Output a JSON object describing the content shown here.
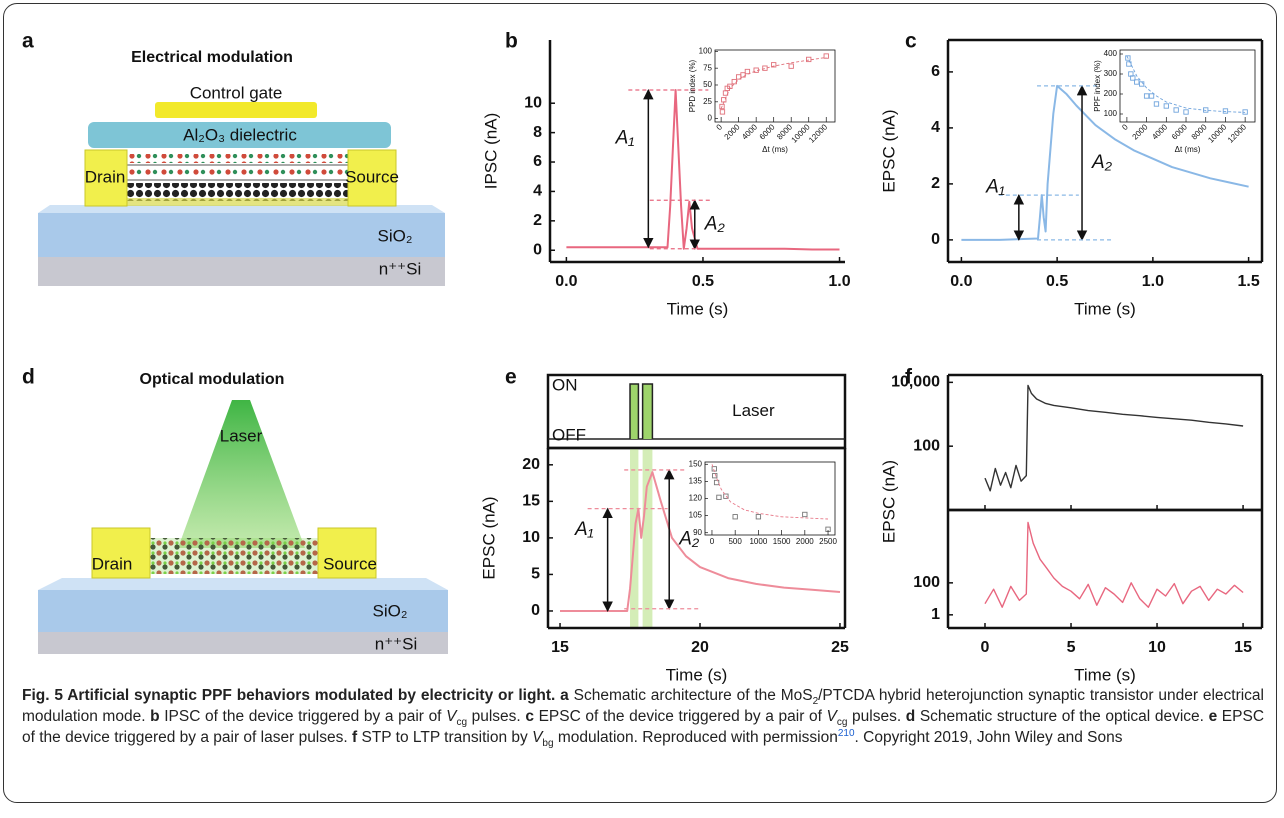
{
  "figure": {
    "schematics": [
      {
        "label": "a",
        "title": "Electrical modulation",
        "gate": "Control gate",
        "dielectric": "Al₂O₃ dielectric",
        "drain": "Drain",
        "source": "Source",
        "oxide": "SiO₂",
        "substrate": "n⁺⁺Si"
      },
      {
        "label": "d",
        "title": "Optical modulation",
        "light": "Laser",
        "drain": "Drain",
        "source": "Source",
        "oxide": "SiO₂",
        "substrate": "n⁺⁺Si"
      }
    ],
    "caption": [
      {
        "text": "Fig. 5 Artificial synaptic PPF behaviors modulated by electricity or light. a",
        "style": "bold"
      },
      {
        "text": " Schematic architecture of the MoS",
        "style": "normal"
      },
      {
        "text": "2",
        "style": "sub"
      },
      {
        "text": "/PTCDA hybrid heterojunction synaptic transistor under electrical modulation mode. ",
        "style": "normal"
      },
      {
        "text": "b",
        "style": "bold"
      },
      {
        "text": " IPSC of the device triggered by a pair of ",
        "style": "normal"
      },
      {
        "text": "V",
        "style": "italic"
      },
      {
        "text": "cg",
        "style": "sub"
      },
      {
        "text": " pulses. ",
        "style": "normal"
      },
      {
        "text": "c",
        "style": "bold"
      },
      {
        "text": " EPSC of the device triggered by a pair of ",
        "style": "normal"
      },
      {
        "text": "V",
        "style": "italic"
      },
      {
        "text": "cg",
        "style": "sub"
      },
      {
        "text": " pulses. ",
        "style": "normal"
      },
      {
        "text": "d",
        "style": "bold"
      },
      {
        "text": " Schematic structure of the optical device. ",
        "style": "normal"
      },
      {
        "text": "e",
        "style": "bold"
      },
      {
        "text": " EPSC of the device triggered by a pair of laser pulses. ",
        "style": "normal"
      },
      {
        "text": "f",
        "style": "bold"
      },
      {
        "text": " STP to LTP transition by ",
        "style": "normal"
      },
      {
        "text": "V",
        "style": "italic"
      },
      {
        "text": "bg",
        "style": "sub"
      },
      {
        "text": " modulation. Reproduced with permission",
        "style": "normal"
      },
      {
        "text": "210",
        "style": "sup"
      },
      {
        "text": ". Copyright 2019, John Wiley and Sons",
        "style": "normal"
      }
    ]
  },
  "chart_data": [
    {
      "type": "line",
      "label": "b",
      "xlabel": "Time (s)",
      "ylabel": "IPSC (nA)",
      "x": [
        0,
        0.1,
        0.2,
        0.3,
        0.37,
        0.38,
        0.4,
        0.42,
        0.43,
        0.44,
        0.45,
        0.46,
        0.48,
        0.5,
        0.6,
        0.7,
        0.8,
        0.9,
        1.0
      ],
      "series": [
        {
          "color": "#e8677f",
          "values": [
            0.2,
            0.2,
            0.2,
            0.2,
            0.2,
            3,
            10.9,
            3,
            0.1,
            1.5,
            3.3,
            1.5,
            0.1,
            0.1,
            0.1,
            0.1,
            0.1,
            0.05,
            0.05
          ]
        }
      ],
      "xlim": [
        -0.06,
        1.02
      ],
      "xticks": [
        {
          "value": 0,
          "label": "0.0"
        },
        {
          "value": 0.5,
          "label": "0.5"
        },
        {
          "value": 1,
          "label": "1.0"
        }
      ],
      "ylim": [
        -0.8,
        14.3
      ],
      "yticks": [
        0,
        2,
        4,
        6,
        8,
        10
      ],
      "annotations": [
        {
          "text": "A₁",
          "x": 0.3,
          "y": [
            0.2,
            10.9
          ]
        },
        {
          "text": "A₂",
          "x": 0.47,
          "y": [
            0.1,
            3.4
          ]
        }
      ],
      "inset": {
        "type": "scatter",
        "xlabel": "Δt (ms)",
        "ylabel": "PPD index (%)",
        "xlim": [
          -700,
          13000
        ],
        "xticks": [
          0,
          2000,
          4000,
          6000,
          8000,
          10000,
          12000
        ],
        "ylim": [
          -5,
          102
        ],
        "yticks": [
          0,
          25,
          50,
          75,
          100
        ],
        "series": [
          {
            "color": "#e0707a",
            "mode": "markers",
            "x": [
              100,
              150,
              300,
              500,
              700,
              1000,
              1500,
              2000,
              2500,
              3000,
              4000,
              5000,
              6000,
              8000,
              10000,
              12000
            ],
            "values": [
              18,
              10,
              28,
              38,
              45,
              48,
              55,
              62,
              65,
              70,
              72,
              75,
              80,
              78,
              88,
              93
            ]
          },
          {
            "color": "#e0707a",
            "mode": "dashed",
            "x": [
              0,
              1000,
              2000,
              3000,
              4000,
              6000,
              8000,
              10000,
              12000
            ],
            "values": [
              15,
              45,
              58,
              66,
              71,
              78,
              83,
              87,
              91
            ]
          }
        ]
      }
    },
    {
      "type": "line",
      "label": "c",
      "xlabel": "Time (s)",
      "ylabel": "EPSC (nA)",
      "x": [
        0,
        0.2,
        0.4,
        0.41,
        0.42,
        0.43,
        0.44,
        0.45,
        0.48,
        0.5,
        0.55,
        0.6,
        0.7,
        0.8,
        0.9,
        1.0,
        1.1,
        1.2,
        1.3,
        1.4,
        1.5
      ],
      "series": [
        {
          "color": "#8ab8e6",
          "values": [
            0,
            0,
            0.05,
            0.8,
            1.6,
            0.8,
            0.3,
            2,
            4.5,
            5.5,
            5.2,
            4.8,
            4.1,
            3.6,
            3.2,
            2.9,
            2.6,
            2.4,
            2.2,
            2.05,
            1.9
          ]
        }
      ],
      "xlim": [
        -0.07,
        1.57
      ],
      "xticks": [
        {
          "value": 0,
          "label": "0.0"
        },
        {
          "value": 0.5,
          "label": "0.5"
        },
        {
          "value": 1,
          "label": "1.0"
        },
        {
          "value": 1.5,
          "label": "1.5"
        }
      ],
      "ylim": [
        -0.79,
        7.14
      ],
      "yticks": [
        0,
        2,
        4,
        6
      ],
      "annotations": [
        {
          "text": "A₁",
          "x": 0.3,
          "y": [
            0,
            1.6
          ]
        },
        {
          "text": "A₂",
          "x": 0.63,
          "y": [
            0,
            5.5
          ]
        }
      ],
      "inset": {
        "type": "scatter",
        "xlabel": "Δt (ms)",
        "ylabel": "PPF index (%)",
        "xlim": [
          -700,
          13000
        ],
        "xticks": [
          0,
          2000,
          4000,
          6000,
          8000,
          10000,
          12000
        ],
        "ylim": [
          60,
          420
        ],
        "yticks": [
          100,
          200,
          300,
          400
        ],
        "series": [
          {
            "color": "#6fa3dc",
            "mode": "markers",
            "x": [
              100,
              200,
              400,
              600,
              1000,
              1500,
              2000,
              2500,
              3000,
              4000,
              5000,
              6000,
              8000,
              10000,
              12000
            ],
            "values": [
              380,
              350,
              300,
              280,
              260,
              250,
              190,
              190,
              150,
              140,
              120,
              110,
              120,
              115,
              110
            ]
          },
          {
            "color": "#6fa3dc",
            "mode": "dashed",
            "x": [
              0,
              1000,
              2000,
              3000,
              4000,
              6000,
              8000,
              10000,
              12000
            ],
            "values": [
              390,
              290,
              230,
              190,
              160,
              130,
              118,
              112,
              108
            ]
          }
        ]
      }
    },
    {
      "type": "line",
      "label": "e",
      "xlabel": "Time (s)",
      "ylabel": "EPSC (nA)",
      "x": [
        15,
        16,
        17,
        17.4,
        17.5,
        17.7,
        17.8,
        17.9,
        18.0,
        18.1,
        18.3,
        18.6,
        19,
        19.5,
        20,
        21,
        22,
        23,
        24,
        25
      ],
      "series": [
        {
          "color": "#ee8c9a",
          "values": [
            0,
            0,
            0,
            0,
            3,
            12,
            14,
            10,
            13,
            17,
            19,
            15,
            10,
            7.5,
            6,
            4.5,
            3.7,
            3.2,
            2.9,
            2.6
          ]
        }
      ],
      "xlim": [
        14.57,
        25.18
      ],
      "xticks": [
        15,
        20,
        25
      ],
      "ylim": [
        -2.33,
        22.3
      ],
      "yticks": [
        0,
        5,
        10,
        15,
        20
      ],
      "annotations": [
        {
          "text": "A₁",
          "x": 16.7,
          "y": [
            0,
            14
          ]
        },
        {
          "text": "A₂",
          "x": 18.9,
          "y": [
            0.3,
            19.3
          ]
        }
      ],
      "laser": {
        "title": "Laser",
        "states": [
          "ON",
          "OFF"
        ],
        "pulses": [
          [
            17.5,
            17.8
          ],
          [
            17.95,
            18.3
          ]
        ]
      },
      "inset": {
        "type": "scatter",
        "xlim": [
          -150,
          2650
        ],
        "xticks": [
          0,
          500,
          1000,
          1500,
          2000,
          2500
        ],
        "ylim": [
          88,
          152
        ],
        "yticks": [
          90,
          105,
          120,
          135,
          150
        ],
        "series": [
          {
            "color": "#777777",
            "mode": "markers",
            "x": [
              50,
              60,
              100,
              150,
              300,
              500,
              1000,
              2000,
              2500
            ],
            "values": [
              146,
              140,
              134,
              121,
              122,
              104,
              104,
              106,
              93
            ]
          },
          {
            "color": "#e87a8a",
            "mode": "dashed",
            "x": [
              0,
              100,
              200,
              400,
              700,
              1000,
              1500,
              2000,
              2500
            ],
            "values": [
              150,
              138,
              128,
              117,
              110,
              107,
              104,
              103,
              102
            ]
          }
        ]
      }
    },
    {
      "type": "line",
      "label": "f",
      "xlabel": "Time (s)",
      "ylabel": "EPSC (nA)",
      "xlim": [
        -2.15,
        16.1
      ],
      "xticks": [
        0,
        5,
        10,
        15
      ],
      "subplots": [
        {
          "yscale": "log",
          "ylim": [
            1,
            17000
          ],
          "yticks": [
            100,
            {
              "value": 10000,
              "label": "10,000"
            }
          ],
          "x": [
            0,
            0.3,
            0.6,
            0.9,
            1.2,
            1.5,
            1.8,
            2.1,
            2.4,
            2.5,
            2.7,
            3,
            3.5,
            4,
            5,
            6,
            7,
            8,
            9,
            10,
            11,
            12,
            13,
            14,
            15
          ],
          "series": [
            {
              "color": "#333333",
              "values": [
                10,
                4,
                20,
                6,
                15,
                5,
                25,
                8,
                12,
                8000,
                4500,
                3000,
                2200,
                1900,
                1600,
                1300,
                1150,
                1000,
                900,
                800,
                720,
                650,
                560,
                500,
                430
              ]
            }
          ]
        },
        {
          "yscale": "log",
          "ylim": [
            0.15,
            3600000
          ],
          "yticks": [
            1,
            100
          ],
          "x": [
            0,
            0.5,
            1,
            1.5,
            2,
            2.4,
            2.5,
            2.8,
            3.2,
            3.6,
            4,
            4.5,
            5,
            5.5,
            6,
            6.5,
            7,
            7.5,
            8,
            8.5,
            9,
            9.5,
            10,
            10.5,
            11,
            11.5,
            12,
            12.5,
            13,
            13.5,
            14,
            14.5,
            15
          ],
          "series": [
            {
              "color": "#e8677f",
              "values": [
                5,
                40,
                3,
                60,
                8,
                20,
                600000,
                30000,
                3000,
                800,
                200,
                60,
                30,
                10,
                80,
                4,
                50,
                20,
                6,
                100,
                10,
                3,
                40,
                15,
                90,
                5,
                30,
                60,
                8,
                40,
                20,
                70,
                25
              ]
            }
          ]
        }
      ]
    }
  ]
}
